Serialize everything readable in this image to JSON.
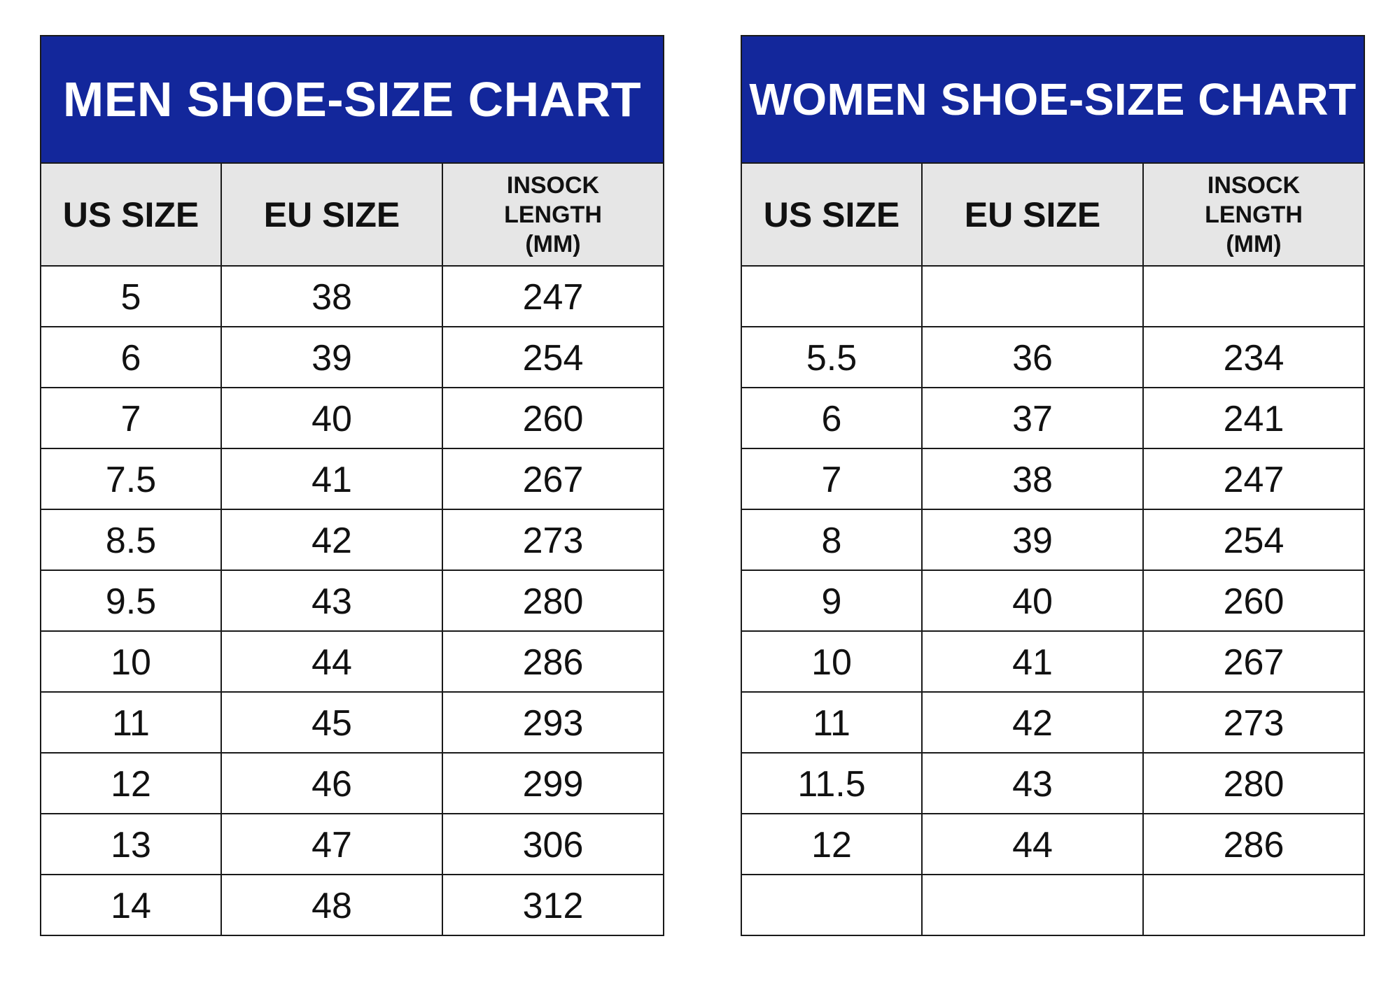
{
  "chart_data": [
    {
      "type": "table",
      "title": "MEN SHOE-SIZE CHART",
      "columns": [
        "US SIZE",
        "EU SIZE",
        "INSOCK LENGTH (MM)"
      ],
      "rows": [
        [
          "5",
          "38",
          "247"
        ],
        [
          "6",
          "39",
          "254"
        ],
        [
          "7",
          "40",
          "260"
        ],
        [
          "7.5",
          "41",
          "267"
        ],
        [
          "8.5",
          "42",
          "273"
        ],
        [
          "9.5",
          "43",
          "280"
        ],
        [
          "10",
          "44",
          "286"
        ],
        [
          "11",
          "45",
          "293"
        ],
        [
          "12",
          "46",
          "299"
        ],
        [
          "13",
          "47",
          "306"
        ],
        [
          "14",
          "48",
          "312"
        ]
      ],
      "colors": {
        "title_bg": "#13279b",
        "title_text": "#ffffff",
        "header_bg": "#e6e6e6"
      }
    },
    {
      "type": "table",
      "title": "WOMEN SHOE-SIZE CHART",
      "columns": [
        "US SIZE",
        "EU SIZE",
        "INSOCK LENGTH (MM)"
      ],
      "rows": [
        [
          "",
          "",
          ""
        ],
        [
          "5.5",
          "36",
          "234"
        ],
        [
          "6",
          "37",
          "241"
        ],
        [
          "7",
          "38",
          "247"
        ],
        [
          "8",
          "39",
          "254"
        ],
        [
          "9",
          "40",
          "260"
        ],
        [
          "10",
          "41",
          "267"
        ],
        [
          "11",
          "42",
          "273"
        ],
        [
          "11.5",
          "43",
          "280"
        ],
        [
          "12",
          "44",
          "286"
        ],
        [
          "",
          "",
          ""
        ]
      ],
      "colors": {
        "title_bg": "#13279b",
        "title_text": "#ffffff",
        "header_bg": "#e6e6e6"
      }
    }
  ],
  "header_small_lines": [
    "INSOCK",
    "LENGTH",
    "(MM)"
  ]
}
